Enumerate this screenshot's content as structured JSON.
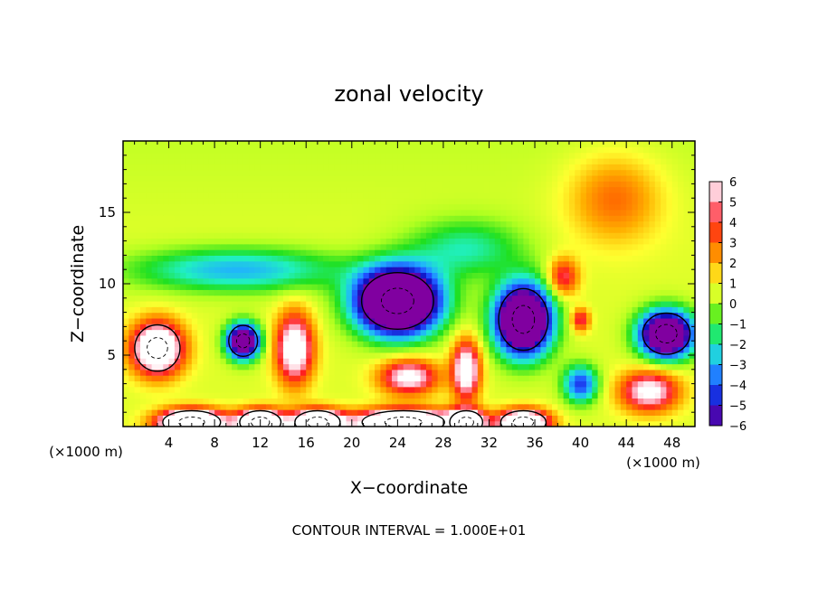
{
  "chart_data": {
    "type": "heatmap",
    "title": "zonal velocity",
    "xlabel": "X−coordinate",
    "ylabel": "Z−coordinate",
    "x_unit_left": "(×1000 m)",
    "x_unit_right": "(×1000 m)",
    "xlim": [
      0,
      50
    ],
    "ylim": [
      0,
      20
    ],
    "x_ticks": [
      4,
      8,
      12,
      16,
      20,
      24,
      28,
      32,
      36,
      40,
      44,
      48
    ],
    "y_ticks": [
      5,
      10,
      15
    ],
    "colorbar": {
      "range": [
        -6,
        6
      ],
      "ticks": [
        6,
        5,
        4,
        3,
        2,
        1,
        0,
        -1,
        -2,
        -3,
        -4,
        -5,
        -6
      ],
      "tick_labels": [
        "6",
        "5",
        "4",
        "3",
        "2",
        "1",
        "0",
        "−1",
        "−2",
        "−3",
        "−4",
        "−5",
        "−6"
      ],
      "colors": [
        "#ffffff",
        "#ff9cb2",
        "#ff2020",
        "#ff6a00",
        "#ffb000",
        "#ffff30",
        "#b0ff20",
        "#20e020",
        "#20f0c0",
        "#20b0ff",
        "#2050ff",
        "#1010c0",
        "#8000a0"
      ]
    },
    "footer": "CONTOUR INTERVAL = 1.000E+01",
    "features": [
      {
        "x": 3,
        "z": 5.5,
        "value": 9,
        "sx": 2.2,
        "sy": 1.8
      },
      {
        "x": 10.5,
        "z": 6.0,
        "value": -10,
        "sx": 1.4,
        "sy": 1.2
      },
      {
        "x": 15,
        "z": 5.5,
        "value": 7,
        "sx": 1.6,
        "sy": 2.4
      },
      {
        "x": 24,
        "z": 8.8,
        "value": -14,
        "sx": 3.5,
        "sy": 2.2
      },
      {
        "x": 35,
        "z": 7.5,
        "value": -12,
        "sx": 2.4,
        "sy": 2.4
      },
      {
        "x": 47.5,
        "z": 6.5,
        "value": -11,
        "sx": 2.3,
        "sy": 1.6
      },
      {
        "x": 25,
        "z": 3.5,
        "value": 6,
        "sx": 2.5,
        "sy": 1.2
      },
      {
        "x": 30,
        "z": 4.0,
        "value": 7,
        "sx": 1.2,
        "sy": 2.0
      },
      {
        "x": 6,
        "z": 0.3,
        "value": 12,
        "sx": 2.8,
        "sy": 0.9
      },
      {
        "x": 12,
        "z": 0.3,
        "value": 11,
        "sx": 2.0,
        "sy": 0.9
      },
      {
        "x": 17,
        "z": 0.3,
        "value": 11,
        "sx": 2.2,
        "sy": 0.9
      },
      {
        "x": 24.5,
        "z": 0.3,
        "value": 12,
        "sx": 4.0,
        "sy": 0.9
      },
      {
        "x": 30,
        "z": 0.3,
        "value": 10,
        "sx": 1.6,
        "sy": 0.9
      },
      {
        "x": 35,
        "z": 0.3,
        "value": 10,
        "sx": 2.2,
        "sy": 0.9
      },
      {
        "x": 40,
        "z": 3.0,
        "value": -5,
        "sx": 1.5,
        "sy": 1.3
      },
      {
        "x": 46,
        "z": 2.5,
        "value": 6,
        "sx": 2.5,
        "sy": 1.4
      },
      {
        "x": 38.5,
        "z": 10.5,
        "value": 4,
        "sx": 1.3,
        "sy": 1.3
      },
      {
        "x": 40,
        "z": 7.5,
        "value": 4,
        "sx": 0.8,
        "sy": 0.8
      },
      {
        "x": 43,
        "z": 16,
        "value": 2.5,
        "sx": 4.0,
        "sy": 3.0
      },
      {
        "x": 30,
        "z": 12.5,
        "value": -2.5,
        "sx": 5.0,
        "sy": 2.0
      },
      {
        "x": 10,
        "z": 11,
        "value": -3.5,
        "sx": 9.0,
        "sy": 1.5
      }
    ]
  }
}
